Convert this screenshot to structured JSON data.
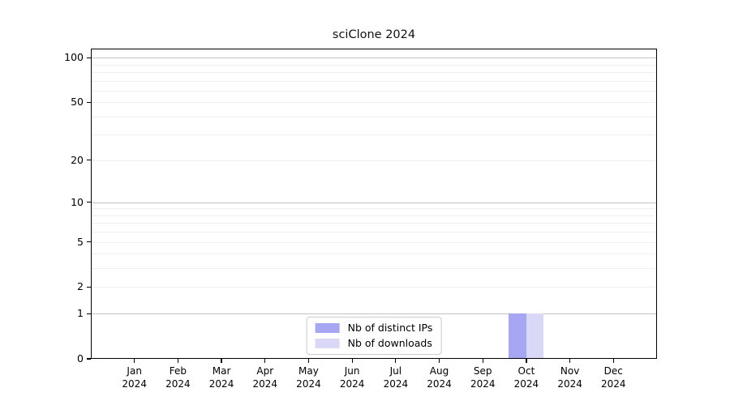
{
  "chart_data": {
    "type": "bar",
    "title": "sciClone 2024",
    "categories": [
      "Jan",
      "Feb",
      "Mar",
      "Apr",
      "May",
      "Jun",
      "Jul",
      "Aug",
      "Sep",
      "Oct",
      "Nov",
      "Dec"
    ],
    "x_tick_year": "2024",
    "series": [
      {
        "name": "Nb of distinct IPs",
        "color": "#a6a6f2",
        "values": [
          0,
          0,
          0,
          0,
          0,
          0,
          0,
          0,
          0,
          1,
          0,
          0
        ]
      },
      {
        "name": "Nb of downloads",
        "color": "#d9d9f7",
        "values": [
          0,
          0,
          0,
          0,
          0,
          0,
          0,
          0,
          0,
          1,
          0,
          0
        ]
      }
    ],
    "y_axis": {
      "scale": "log1p",
      "max": 115,
      "ticks": [
        0,
        1,
        2,
        5,
        10,
        20,
        50,
        100
      ],
      "decade_gridlines": [
        1,
        10,
        100
      ],
      "minor_gridlines": [
        2,
        3,
        4,
        5,
        6,
        7,
        8,
        9,
        20,
        30,
        40,
        50,
        60,
        70,
        80,
        90
      ]
    },
    "legend": {
      "position": "lower center"
    },
    "colors": {
      "grid_major": "#c3c3c3",
      "grid_minor": "#efefef",
      "spine": "#000000",
      "background": "#ffffff"
    },
    "bar_group_width": 0.8
  }
}
